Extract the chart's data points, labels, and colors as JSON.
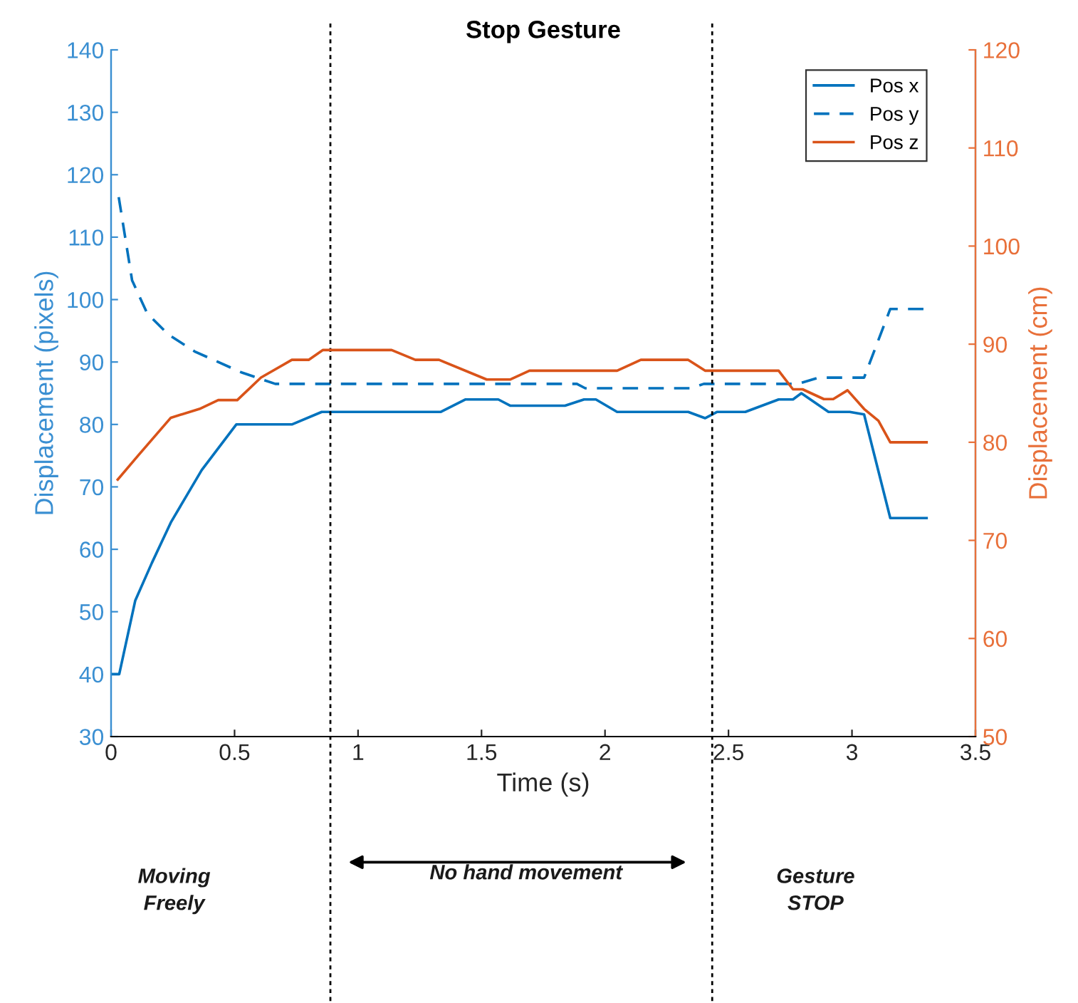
{
  "chart_data": {
    "type": "line",
    "title": "Stop Gesture",
    "xlabel": "Time (s)",
    "ylabel": "Displacement (pixels)",
    "y2label": "Displacement (cm)",
    "xlim": [
      0,
      3.5
    ],
    "xticks": [
      0,
      0.5,
      1,
      1.5,
      2,
      2.5,
      3,
      3.5
    ],
    "ylim": [
      30,
      140
    ],
    "yticks": [
      30,
      40,
      50,
      60,
      70,
      80,
      90,
      100,
      110,
      120,
      130,
      140
    ],
    "y2lim": [
      50,
      120
    ],
    "y2ticks": [
      50,
      60,
      70,
      80,
      90,
      100,
      110,
      120
    ],
    "grid": false,
    "legend": "top right",
    "marker": "none",
    "series": [
      {
        "name": "Pos x",
        "color": "#0072bd",
        "line_style": "solid",
        "x": [
          0.0,
          0.033,
          0.098,
          0.165,
          0.242,
          0.367,
          0.507,
          0.732,
          0.853,
          1.334,
          1.434,
          1.568,
          1.617,
          1.838,
          1.915,
          1.963,
          2.049,
          2.337,
          2.405,
          2.453,
          2.568,
          2.703,
          2.761,
          2.795,
          2.905,
          2.991,
          3.049,
          3.155,
          3.302
        ],
        "values": [
          40,
          40,
          51.8,
          57.8,
          64.3,
          72.7,
          80,
          80,
          82,
          82,
          84,
          84,
          83,
          83,
          84,
          84,
          82,
          82,
          81,
          82,
          82,
          84,
          84,
          85,
          82,
          82,
          81.6,
          65,
          65
        ]
      },
      {
        "name": "Pos y",
        "color": "#0072bd",
        "line_style": "dashed",
        "x": [
          0.031,
          0.085,
          0.146,
          0.232,
          0.338,
          0.53,
          0.665,
          1.886,
          1.92,
          2.347,
          2.4,
          2.78,
          2.866,
          3.049,
          3.155,
          3.302
        ],
        "values": [
          116.4,
          103.1,
          97.8,
          94.4,
          91.7,
          88.3,
          86.5,
          86.5,
          85.8,
          85.8,
          86.5,
          86.5,
          87.5,
          87.5,
          98.5,
          98.5
        ]
      },
      {
        "name": "Pos z",
        "color": "#d95319",
        "line_style": "solid",
        "axis": "y2",
        "x": [
          0.027,
          0.108,
          0.242,
          0.358,
          0.434,
          0.511,
          0.607,
          0.732,
          0.8,
          0.857,
          1.136,
          1.232,
          1.328,
          1.521,
          1.617,
          1.694,
          2.049,
          2.145,
          2.337,
          2.405,
          2.703,
          2.761,
          2.8,
          2.886,
          2.924,
          2.982,
          3.049,
          3.107,
          3.155,
          3.302
        ],
        "values": [
          76.2,
          78.6,
          82.5,
          83.4,
          84.3,
          84.3,
          86.6,
          88.4,
          88.4,
          89.4,
          89.4,
          88.4,
          88.4,
          86.4,
          86.4,
          87.3,
          87.3,
          88.4,
          88.4,
          87.3,
          87.3,
          85.4,
          85.4,
          84.4,
          84.4,
          85.3,
          83.4,
          82.2,
          80,
          80
        ]
      }
    ],
    "ref_lines": [
      {
        "axis": "x",
        "value": 0.888,
        "color": "#000000",
        "line_style": "dotted"
      },
      {
        "axis": "x",
        "value": 2.434,
        "color": "#000000",
        "line_style": "dotted"
      }
    ],
    "annotations": [
      "Moving\nFreely",
      "No hand movement",
      "Gesture\nSTOP"
    ]
  }
}
